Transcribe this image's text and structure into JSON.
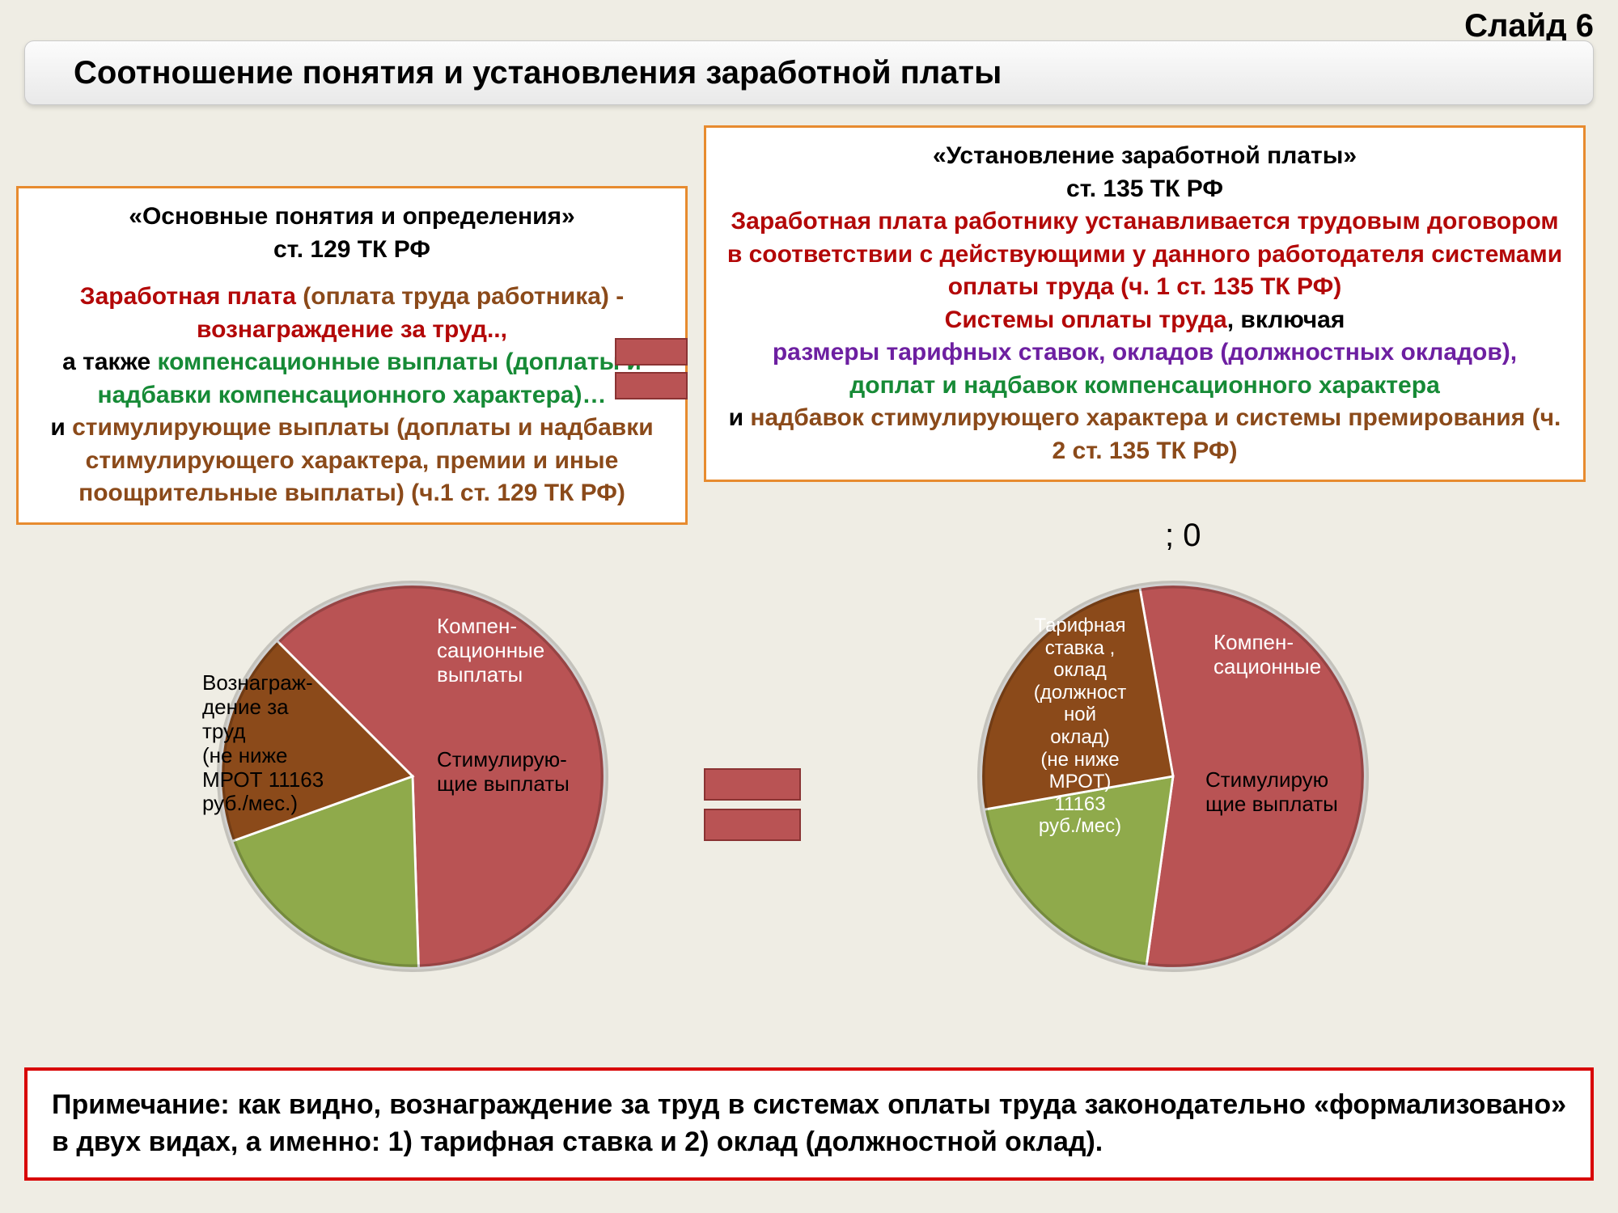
{
  "slide_number": "Слайд 6",
  "title": "Соотношение понятия и установления заработной платы",
  "zero_label": "; 0",
  "colors": {
    "slice_main": "#b95354",
    "slice_comp": "#8faa4b",
    "slice_stim": "#8b4a1a",
    "box_border": "#e78b2f",
    "note_border": "#d80000",
    "text_red": "#b30808",
    "text_green": "#168a36",
    "text_brown": "#8b4a1a",
    "text_purple": "#6d1fa1",
    "bg": "#efede4"
  },
  "left_box": {
    "l1": "«Основные понятия и определения»",
    "l2": "ст. 129 ТК РФ",
    "l3a": "Заработная плата",
    "l3b": " (оплата труда работника) -",
    "l4": "вознаграждение за труд..,",
    "l5a": "а также ",
    "l5b": "компенсационные выплаты (доплаты и надбавки компенсационного характера)…",
    "l6a": "и ",
    "l6b": "стимулирующие выплаты (доплаты и надбавки стимулирующего характера, премии и иные поощрительные выплаты) (ч.1 ст. 129 ТК РФ)"
  },
  "right_box": {
    "l1": "«Установление заработной платы»",
    "l2": "ст. 135 ТК РФ",
    "l3": "Заработная плата работнику устанавливается трудовым договором в соответствии с действующими у данного работодателя системами оплаты труда (ч. 1 ст. 135 ТК РФ)",
    "l4a": "Системы оплаты труда",
    "l4b": ", включая",
    "l5": "размеры тарифных ставок, окладов (должностных окладов),",
    "l6": "доплат и надбавок компенсационного характера",
    "l7a": "и ",
    "l7b": "надбавок стимулирующего характера и системы премирования (ч. 2 ст. 135 ТК РФ)"
  },
  "pie_left": {
    "slices": [
      {
        "value": 62,
        "color": "#b95354",
        "label": "Вознаграж-\nдение за труд\n(не ниже МРОТ 11163 руб./мес.)"
      },
      {
        "value": 20,
        "color": "#8faa4b",
        "label": "Компен-\nсационные выплаты"
      },
      {
        "value": 18,
        "color": "#8b4a1a",
        "label": "Стимулирую-\nщие выплаты"
      }
    ],
    "start_angle": -135
  },
  "pie_right": {
    "slices": [
      {
        "value": 55,
        "color": "#b95354",
        "label": "Тарифная ставка , оклад (должност ной оклад) (не ниже МРОТ) 11163 руб./мес)"
      },
      {
        "value": 20,
        "color": "#8faa4b",
        "label": "Компен-\nсационные"
      },
      {
        "value": 25,
        "color": "#8b4a1a",
        "label": "Стимулирую щие выплаты"
      }
    ],
    "start_angle": -100
  },
  "labels_left": {
    "main": "Вознаграж-\nдение за\nтруд\n(не ниже\nМРОТ 11163\nруб./мес.)",
    "comp": "Компен-\nсационные\nвыплаты",
    "stim": "Стимулирую-\nщие выплаты"
  },
  "labels_right": {
    "main": "Тарифная\nставка ,\nоклад\n(должност\nной\nоклад)\n(не ниже\nМРОТ)\n11163\nруб./мес)",
    "comp": "Компен-\nсационные",
    "stim": "Стимулирую\nщие выплаты"
  },
  "note": "Примечание: как видно, вознаграждение за труд в системах оплаты труда законодательно «формализовано» в двух видах, а именно: 1) тарифная ставка и 2) оклад (должностной оклад)."
}
